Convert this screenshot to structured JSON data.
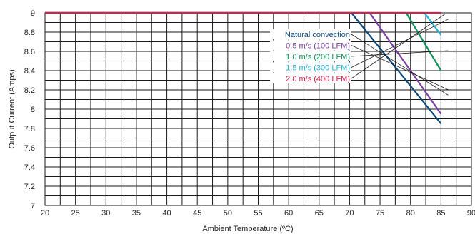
{
  "chart_data": {
    "type": "line",
    "xlabel": "Ambient Temperature (ºC)",
    "ylabel": "Output Current (Amps)",
    "xlim": [
      20,
      90
    ],
    "ylim": [
      7,
      9
    ],
    "x_ticks": [
      20,
      25,
      30,
      35,
      40,
      45,
      50,
      55,
      60,
      65,
      70,
      75,
      80,
      85,
      90
    ],
    "y_ticks": [
      7,
      7.2,
      7.4,
      7.6,
      7.8,
      8,
      8.2,
      8.4,
      8.6,
      8.8,
      9
    ],
    "y_tick_labels": [
      "7",
      "7.2",
      "7.4",
      "7.6",
      "7.8",
      "8",
      "8.2",
      "8.4",
      "8.6",
      "8.8",
      "9"
    ],
    "x_tick_labels": [
      "20",
      "25",
      "30",
      "35",
      "40",
      "45",
      "50",
      "55",
      "60",
      "65",
      "70",
      "75",
      "80",
      "85",
      "90"
    ],
    "grid": true,
    "legend_placement": "center-right",
    "series": [
      {
        "name": "Natural convection",
        "color": "#0d4a7a",
        "points": [
          [
            20,
            9
          ],
          [
            70.3,
            9
          ],
          [
            85,
            7.85
          ]
        ]
      },
      {
        "name": "0.5 m/s (100 LFM)",
        "color": "#7b3fa1",
        "points": [
          [
            20,
            9
          ],
          [
            73.3,
            9
          ],
          [
            85,
            7.95
          ]
        ]
      },
      {
        "name": "1.0 m/s (200 LFM)",
        "color": "#12925a",
        "points": [
          [
            20,
            9
          ],
          [
            79.3,
            9
          ],
          [
            85,
            8.4
          ]
        ]
      },
      {
        "name": "1.5 m/s (300 LFM)",
        "color": "#22b3d6",
        "points": [
          [
            20,
            9
          ],
          [
            82.3,
            9
          ],
          [
            85,
            8.77
          ]
        ]
      },
      {
        "name": "2.0 m/s (400 LFM)",
        "color": "#d61f4a",
        "points": [
          [
            20,
            9
          ],
          [
            85,
            9
          ]
        ]
      }
    ]
  }
}
